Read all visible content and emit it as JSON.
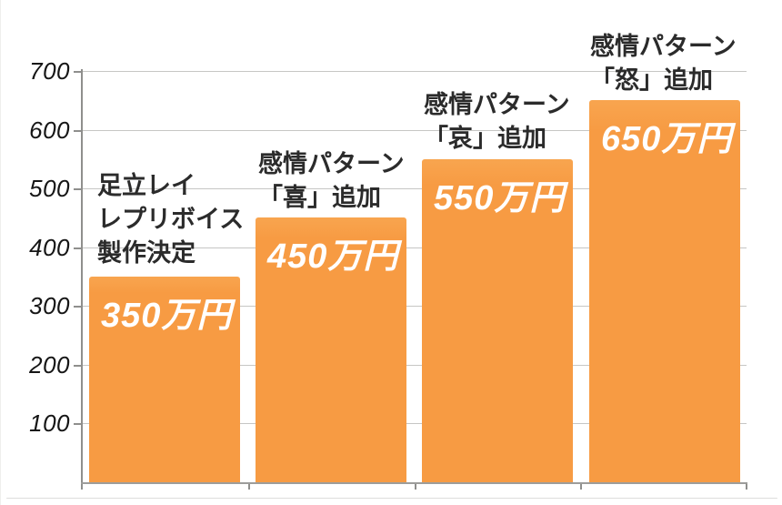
{
  "chart_data": {
    "type": "bar",
    "title": "",
    "xlabel": "",
    "ylabel": "",
    "ylim": [
      0,
      700
    ],
    "y_ticks": [
      700,
      600,
      500,
      400,
      300,
      200,
      100
    ],
    "grid": "horizontal",
    "legend": "none",
    "unit": "万円",
    "bar_color": "#F79B43",
    "gridline_color": "#C6C6C4",
    "axis_color": "#8F8F8D",
    "value_label_color": "#FFFFFF",
    "annotation_color": "#2B2B2B",
    "categories": [
      "足立レイ レプリボイス 製作決定",
      "感情パターン「喜」追加",
      "感情パターン「哀」追加",
      "感情パターン「怒」追加"
    ],
    "values": [
      350,
      450,
      550,
      650
    ],
    "bars": [
      {
        "value": 350,
        "value_label": "350万円",
        "annotation_lines": [
          "足立レイ",
          "レプリボイス",
          "製作決定"
        ]
      },
      {
        "value": 450,
        "value_label": "450万円",
        "annotation_lines": [
          "感情パターン",
          "「喜」追加"
        ]
      },
      {
        "value": 550,
        "value_label": "550万円",
        "annotation_lines": [
          "感情パターン",
          "「哀」追加"
        ]
      },
      {
        "value": 650,
        "value_label": "650万円",
        "annotation_lines": [
          "感情パターン",
          "「怒」追加"
        ]
      }
    ]
  }
}
